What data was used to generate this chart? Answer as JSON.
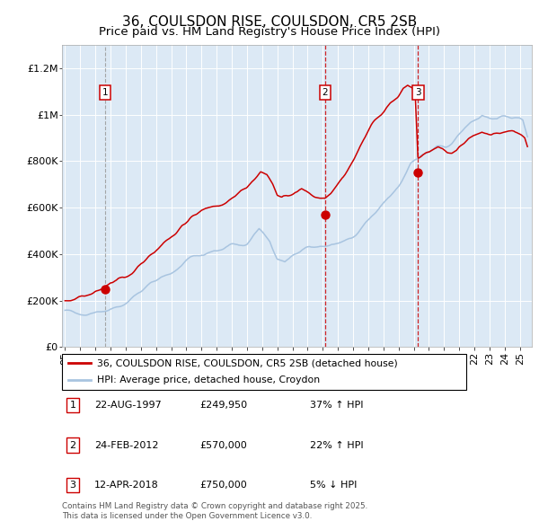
{
  "title": "36, COULSDON RISE, COULSDON, CR5 2SB",
  "subtitle": "Price paid vs. HM Land Registry's House Price Index (HPI)",
  "xlim": [
    1994.8,
    2025.8
  ],
  "ylim": [
    0,
    1300000
  ],
  "yticks": [
    0,
    200000,
    400000,
    600000,
    800000,
    1000000,
    1200000
  ],
  "ytick_labels": [
    "£0",
    "£200K",
    "£400K",
    "£600K",
    "£800K",
    "£1M",
    "£1.2M"
  ],
  "background_color": "#dce9f5",
  "grid_color": "#ffffff",
  "red_line_color": "#cc0000",
  "blue_line_color": "#a8c4e0",
  "sale_dates": [
    1997.64,
    2012.15,
    2018.28
  ],
  "sale_prices": [
    249950,
    570000,
    750000
  ],
  "sale_labels": [
    "1",
    "2",
    "3"
  ],
  "legend_red_label": "36, COULSDON RISE, COULSDON, CR5 2SB (detached house)",
  "legend_blue_label": "HPI: Average price, detached house, Croydon",
  "table_data": [
    [
      "1",
      "22-AUG-1997",
      "£249,950",
      "37% ↑ HPI"
    ],
    [
      "2",
      "24-FEB-2012",
      "£570,000",
      "22% ↑ HPI"
    ],
    [
      "3",
      "12-APR-2018",
      "£750,000",
      "5% ↓ HPI"
    ]
  ],
  "footer_text": "Contains HM Land Registry data © Crown copyright and database right 2025.\nThis data is licensed under the Open Government Licence v3.0.",
  "title_fontsize": 11,
  "tick_fontsize": 8
}
